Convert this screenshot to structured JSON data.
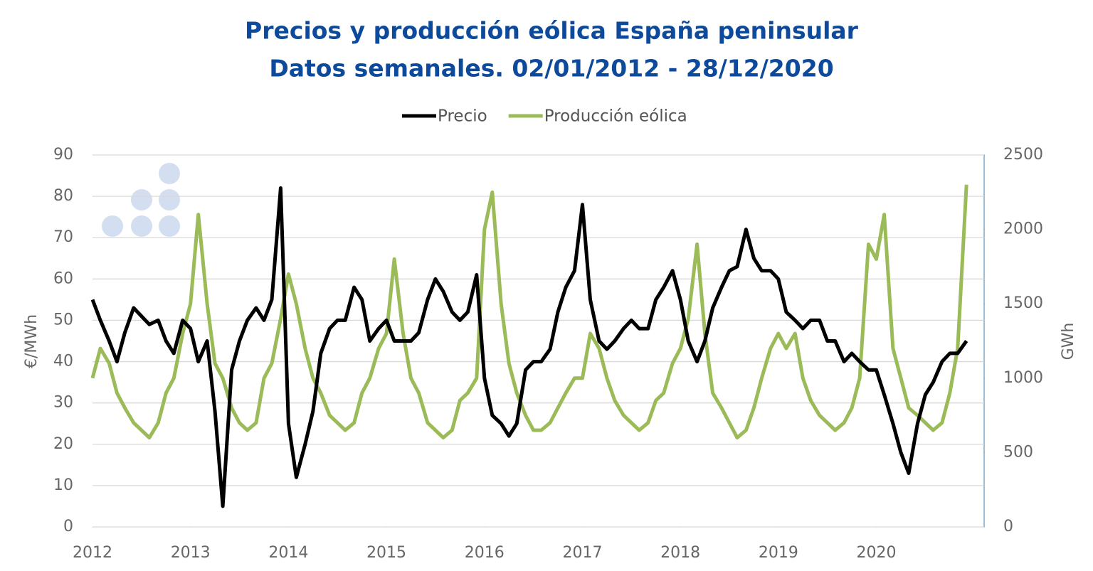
{
  "chart_data": {
    "type": "line",
    "title": "Precios y producción eólica España peninsular",
    "subtitle": "Datos semanales. 02/01/2012 - 28/12/2020",
    "y_label": "€/MWh",
    "y2_label": "GWh",
    "x": [
      2012,
      2012.08,
      2012.17,
      2012.25,
      2012.33,
      2012.42,
      2012.5,
      2012.58,
      2012.67,
      2012.75,
      2012.83,
      2012.92,
      2013,
      2013.08,
      2013.17,
      2013.25,
      2013.33,
      2013.42,
      2013.5,
      2013.58,
      2013.67,
      2013.75,
      2013.83,
      2013.92,
      2014,
      2014.08,
      2014.17,
      2014.25,
      2014.33,
      2014.42,
      2014.5,
      2014.58,
      2014.67,
      2014.75,
      2014.83,
      2014.92,
      2015,
      2015.08,
      2015.17,
      2015.25,
      2015.33,
      2015.42,
      2015.5,
      2015.58,
      2015.67,
      2015.75,
      2015.83,
      2015.92,
      2016,
      2016.08,
      2016.17,
      2016.25,
      2016.33,
      2016.42,
      2016.5,
      2016.58,
      2016.67,
      2016.75,
      2016.83,
      2016.92,
      2017,
      2017.08,
      2017.17,
      2017.25,
      2017.33,
      2017.42,
      2017.5,
      2017.58,
      2017.67,
      2017.75,
      2017.83,
      2017.92,
      2018,
      2018.08,
      2018.17,
      2018.25,
      2018.33,
      2018.42,
      2018.5,
      2018.58,
      2018.67,
      2018.75,
      2018.83,
      2018.92,
      2019,
      2019.08,
      2019.17,
      2019.25,
      2019.33,
      2019.42,
      2019.5,
      2019.58,
      2019.67,
      2019.75,
      2019.83,
      2019.92,
      2020,
      2020.08,
      2020.17,
      2020.25,
      2020.33,
      2020.42,
      2020.5,
      2020.58,
      2020.67,
      2020.75,
      2020.83,
      2020.92
    ],
    "series": [
      {
        "name": "Precio",
        "color": "#000000",
        "axis": "y",
        "values": [
          55,
          50,
          45,
          40,
          47,
          53,
          51,
          49,
          50,
          45,
          42,
          50,
          48,
          40,
          45,
          28,
          5,
          38,
          45,
          50,
          53,
          50,
          55,
          82,
          25,
          12,
          20,
          28,
          42,
          48,
          50,
          50,
          58,
          55,
          45,
          48,
          50,
          45,
          45,
          45,
          47,
          55,
          60,
          57,
          52,
          50,
          52,
          61,
          36,
          27,
          25,
          22,
          25,
          38,
          40,
          40,
          43,
          52,
          58,
          62,
          78,
          55,
          45,
          43,
          45,
          48,
          50,
          48,
          48,
          55,
          58,
          62,
          55,
          45,
          40,
          45,
          53,
          58,
          62,
          63,
          72,
          65,
          62,
          62,
          60,
          52,
          50,
          48,
          50,
          50,
          45,
          45,
          40,
          42,
          40,
          38,
          38,
          32,
          25,
          18,
          13,
          25,
          32,
          35,
          40,
          42,
          42,
          45
        ]
      },
      {
        "name": "Producción eólica",
        "color": "#9bbb59",
        "axis": "y2",
        "values": [
          1000,
          1200,
          1100,
          900,
          800,
          700,
          650,
          600,
          700,
          900,
          1000,
          1300,
          1500,
          2100,
          1500,
          1100,
          1000,
          800,
          700,
          650,
          700,
          1000,
          1100,
          1400,
          1700,
          1500,
          1200,
          1000,
          900,
          750,
          700,
          650,
          700,
          900,
          1000,
          1200,
          1300,
          1800,
          1300,
          1000,
          900,
          700,
          650,
          600,
          650,
          850,
          900,
          1000,
          2000,
          2250,
          1500,
          1100,
          900,
          750,
          650,
          650,
          700,
          800,
          900,
          1000,
          1000,
          1300,
          1200,
          1000,
          850,
          750,
          700,
          650,
          700,
          850,
          900,
          1100,
          1200,
          1400,
          1900,
          1300,
          900,
          800,
          700,
          600,
          650,
          800,
          1000,
          1200,
          1300,
          1200,
          1300,
          1000,
          850,
          750,
          700,
          650,
          700,
          800,
          1000,
          1900,
          1800,
          2100,
          1200,
          1000,
          800,
          750,
          700,
          650,
          700,
          900,
          1200,
          2300
        ]
      }
    ],
    "xlim": [
      2012,
      2021.1
    ],
    "xticks": [
      2012,
      2013,
      2014,
      2015,
      2016,
      2017,
      2018,
      2019,
      2020
    ],
    "ylim": [
      0,
      90
    ],
    "yticks": [
      0,
      10,
      20,
      30,
      40,
      50,
      60,
      70,
      80,
      90
    ],
    "y2lim": [
      0,
      2500
    ],
    "y2ticks": [
      0,
      500,
      1000,
      1500,
      2000,
      2500
    ],
    "grid": true,
    "legend": "top"
  }
}
